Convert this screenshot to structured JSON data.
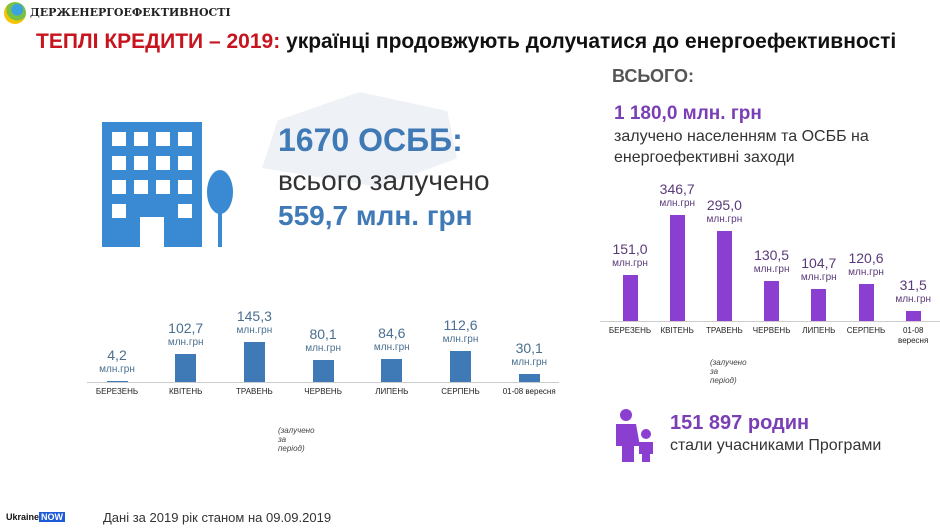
{
  "header": {
    "org": "ДЕРЖЕНЕРГОЕФЕКТИВНОСТІ",
    "title_red": "ТЕПЛІ КРЕДИТИ – 2019:",
    "title_rest": " українці продовжують долучатися до енергоефективності"
  },
  "osbb": {
    "count": "1670 ОСББ:",
    "subtitle": "всього залучено",
    "sum": "559,7 млн. грн"
  },
  "total": {
    "heading": "ВСЬОГО:",
    "value": "1 180,0 млн. грн",
    "description": "залучено населенням та ОСББ на енергоефективні заходи"
  },
  "families": {
    "count": "151 897 родин",
    "description": "стали учасниками Програми"
  },
  "footer": {
    "note": "Дані за 2019 рік станом на 09.09.2019",
    "brand": "Ukraine",
    "brand2": "NOW"
  },
  "chart_data": [
    {
      "type": "bar",
      "name": "osbb",
      "color": "#3f79b6",
      "unit": "млн.грн",
      "note": "(залучено за період)",
      "categories": [
        "БЕРЕЗЕНЬ",
        "КВІТЕНЬ",
        "ТРАВЕНЬ",
        "ЧЕРВЕНЬ",
        "ЛИПЕНЬ",
        "СЕРПЕНЬ",
        "01-08 вересня"
      ],
      "labels": [
        "4,2",
        "102,7",
        "145,3",
        "80,1",
        "84,6",
        "112,6",
        "30,1"
      ],
      "values": [
        4.2,
        102.7,
        145.3,
        80.1,
        84.6,
        112.6,
        30.1
      ]
    },
    {
      "type": "bar",
      "name": "total",
      "color": "#8a3fd1",
      "unit": "млн.грн",
      "note": "(залучено за період)",
      "categories": [
        "БЕРЕЗЕНЬ",
        "КВІТЕНЬ",
        "ТРАВЕНЬ",
        "ЧЕРВЕНЬ",
        "ЛИПЕНЬ",
        "СЕРПЕНЬ",
        "01-08 вересня"
      ],
      "labels": [
        "151,0",
        "346,7",
        "295,0",
        "130,5",
        "104,7",
        "120,6",
        "31,5"
      ],
      "values": [
        151.0,
        346.7,
        295.0,
        130.5,
        104.7,
        120.6,
        31.5
      ]
    }
  ]
}
